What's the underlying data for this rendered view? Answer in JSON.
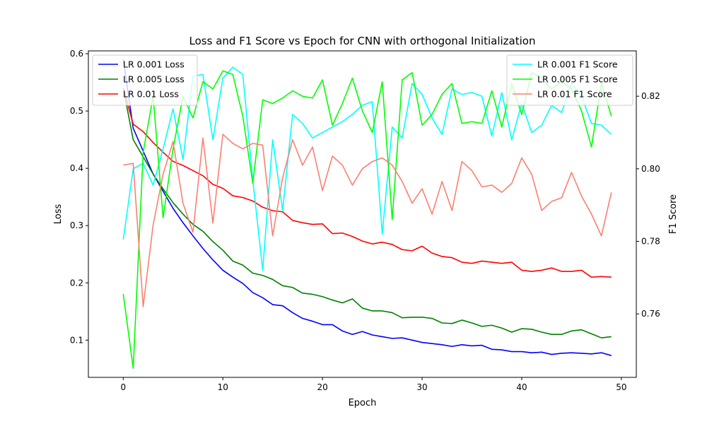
{
  "chart_data": {
    "type": "line",
    "title": "Loss and F1 Score vs Epoch for CNN with orthogonal Initialization",
    "xlabel": "Epoch",
    "ylabel": "Loss",
    "y2label": "F1 Score",
    "xlim": [
      -3.5,
      51.5
    ],
    "ylim": [
      0.035,
      0.605
    ],
    "y2lim": [
      0.7425,
      0.8325
    ],
    "xticks": [
      0,
      10,
      20,
      30,
      40,
      50
    ],
    "yticks": [
      0.1,
      0.2,
      0.3,
      0.4,
      0.5,
      0.6
    ],
    "ytick_labels": [
      "0.1",
      "0.2",
      "0.3",
      "0.4",
      "0.5",
      "0.6"
    ],
    "y2ticks": [
      0.76,
      0.78,
      0.8,
      0.82
    ],
    "y2tick_labels": [
      "0.76",
      "0.78",
      "0.80",
      "0.82"
    ],
    "grid": false,
    "legend_left_placement": "top-left",
    "legend_right_placement": "top-right",
    "x": [
      0,
      1,
      2,
      3,
      4,
      5,
      6,
      7,
      8,
      9,
      10,
      11,
      12,
      13,
      14,
      15,
      16,
      17,
      18,
      19,
      20,
      21,
      22,
      23,
      24,
      25,
      26,
      27,
      28,
      29,
      30,
      31,
      32,
      33,
      34,
      35,
      36,
      37,
      38,
      39,
      40,
      41,
      42,
      43,
      44,
      45,
      46,
      47,
      48,
      49
    ],
    "series": [
      {
        "name": "LR 0.001 Loss",
        "axis": "left",
        "color": "#0000ff",
        "values": [
          0.59,
          0.47,
          0.43,
          0.39,
          0.36,
          0.33,
          0.305,
          0.282,
          0.26,
          0.24,
          0.222,
          0.21,
          0.199,
          0.183,
          0.174,
          0.162,
          0.16,
          0.148,
          0.138,
          0.133,
          0.127,
          0.127,
          0.116,
          0.11,
          0.115,
          0.109,
          0.106,
          0.103,
          0.104,
          0.1,
          0.096,
          0.094,
          0.092,
          0.089,
          0.092,
          0.09,
          0.091,
          0.084,
          0.083,
          0.08,
          0.08,
          0.078,
          0.079,
          0.075,
          0.077,
          0.078,
          0.077,
          0.076,
          0.078,
          0.073
        ]
      },
      {
        "name": "LR 0.005 Loss",
        "axis": "left",
        "color": "#008000",
        "values": [
          0.54,
          0.45,
          0.42,
          0.39,
          0.364,
          0.34,
          0.32,
          0.302,
          0.29,
          0.272,
          0.257,
          0.238,
          0.231,
          0.217,
          0.213,
          0.206,
          0.195,
          0.192,
          0.182,
          0.18,
          0.176,
          0.17,
          0.165,
          0.172,
          0.156,
          0.151,
          0.151,
          0.148,
          0.139,
          0.14,
          0.14,
          0.138,
          0.13,
          0.129,
          0.135,
          0.13,
          0.124,
          0.126,
          0.121,
          0.114,
          0.12,
          0.119,
          0.114,
          0.11,
          0.11,
          0.116,
          0.118,
          0.111,
          0.104,
          0.106
        ]
      },
      {
        "name": "LR 0.01 Loss",
        "axis": "left",
        "color": "#ff0000",
        "values": [
          0.54,
          0.477,
          0.464,
          0.445,
          0.428,
          0.412,
          0.405,
          0.396,
          0.387,
          0.372,
          0.365,
          0.352,
          0.349,
          0.343,
          0.332,
          0.326,
          0.324,
          0.309,
          0.305,
          0.302,
          0.303,
          0.286,
          0.287,
          0.281,
          0.273,
          0.268,
          0.271,
          0.267,
          0.258,
          0.256,
          0.264,
          0.252,
          0.246,
          0.244,
          0.236,
          0.234,
          0.238,
          0.236,
          0.234,
          0.236,
          0.222,
          0.22,
          0.222,
          0.226,
          0.22,
          0.22,
          0.222,
          0.21,
          0.211,
          0.21
        ]
      },
      {
        "name": "LR 0.001 F1 Score",
        "axis": "right",
        "color": "#00ffff",
        "values": [
          0.7805,
          0.8,
          0.8015,
          0.7955,
          0.8055,
          0.8165,
          0.8025,
          0.8255,
          0.826,
          0.808,
          0.825,
          0.828,
          0.826,
          0.797,
          0.772,
          0.808,
          0.7885,
          0.815,
          0.8125,
          0.8085,
          0.81,
          0.8115,
          0.813,
          0.815,
          0.8175,
          0.8185,
          0.782,
          0.8115,
          0.8085,
          0.8235,
          0.8205,
          0.814,
          0.8095,
          0.822,
          0.8205,
          0.821,
          0.82,
          0.809,
          0.821,
          0.808,
          0.818,
          0.81,
          0.812,
          0.8175,
          0.8155,
          0.8235,
          0.82,
          0.8125,
          0.812,
          0.8095
        ]
      },
      {
        "name": "LR 0.005 F1 Score",
        "axis": "right",
        "color": "#00ff00",
        "values": [
          0.7655,
          0.745,
          0.8045,
          0.82,
          0.7865,
          0.8055,
          0.82,
          0.814,
          0.824,
          0.822,
          0.827,
          0.826,
          0.8145,
          0.796,
          0.819,
          0.818,
          0.8195,
          0.8215,
          0.82,
          0.8195,
          0.8245,
          0.812,
          0.818,
          0.825,
          0.816,
          0.81,
          0.824,
          0.786,
          0.8245,
          0.8265,
          0.812,
          0.815,
          0.8205,
          0.8235,
          0.8125,
          0.813,
          0.8125,
          0.8215,
          0.8115,
          0.8235,
          0.815,
          0.8265,
          0.825,
          0.822,
          0.824,
          0.822,
          0.816,
          0.806,
          0.8235,
          0.8145
        ]
      },
      {
        "name": "LR 0.01 F1 Score",
        "axis": "right",
        "color": "#fa8072",
        "values": [
          0.801,
          0.8015,
          0.762,
          0.7845,
          0.7985,
          0.8075,
          0.7905,
          0.7825,
          0.8085,
          0.785,
          0.8095,
          0.807,
          0.8055,
          0.807,
          0.8065,
          0.7815,
          0.7975,
          0.808,
          0.801,
          0.806,
          0.794,
          0.8035,
          0.801,
          0.7955,
          0.8,
          0.802,
          0.803,
          0.801,
          0.7965,
          0.7905,
          0.7945,
          0.7875,
          0.7965,
          0.7885,
          0.802,
          0.7995,
          0.795,
          0.7955,
          0.7935,
          0.796,
          0.803,
          0.7985,
          0.7885,
          0.791,
          0.792,
          0.799,
          0.7925,
          0.7875,
          0.7815,
          0.7935
        ]
      }
    ]
  }
}
